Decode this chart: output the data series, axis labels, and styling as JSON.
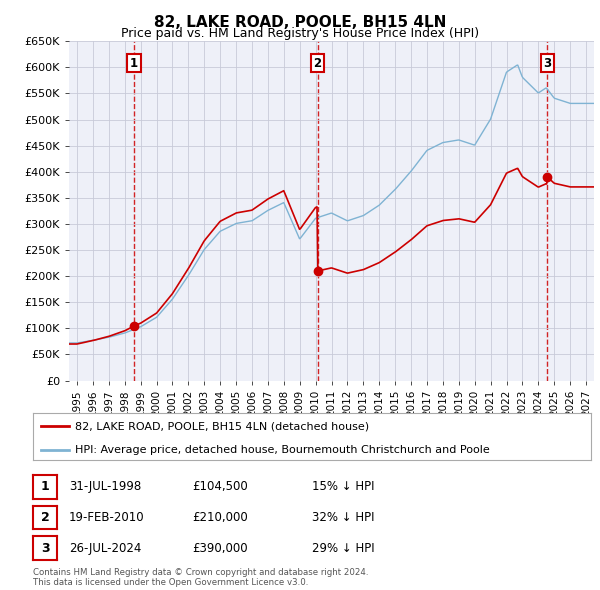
{
  "title": "82, LAKE ROAD, POOLE, BH15 4LN",
  "subtitle": "Price paid vs. HM Land Registry's House Price Index (HPI)",
  "ylim": [
    0,
    650000
  ],
  "yticks": [
    0,
    50000,
    100000,
    150000,
    200000,
    250000,
    300000,
    350000,
    400000,
    450000,
    500000,
    550000,
    600000,
    650000
  ],
  "ytick_labels": [
    "£0",
    "£50K",
    "£100K",
    "£150K",
    "£200K",
    "£250K",
    "£300K",
    "£350K",
    "£400K",
    "£450K",
    "£500K",
    "£550K",
    "£600K",
    "£650K"
  ],
  "xlim_start": 1994.5,
  "xlim_end": 2027.5,
  "xtick_years": [
    1995,
    1996,
    1997,
    1998,
    1999,
    2000,
    2001,
    2002,
    2003,
    2004,
    2005,
    2006,
    2007,
    2008,
    2009,
    2010,
    2011,
    2012,
    2013,
    2014,
    2015,
    2016,
    2017,
    2018,
    2019,
    2020,
    2021,
    2022,
    2023,
    2024,
    2025,
    2026,
    2027
  ],
  "sale_color": "#cc0000",
  "hpi_color": "#7fb3d3",
  "sale_label": "82, LAKE ROAD, POOLE, BH15 4LN (detached house)",
  "hpi_label": "HPI: Average price, detached house, Bournemouth Christchurch and Poole",
  "transactions": [
    {
      "num": 1,
      "date": "31-JUL-1998",
      "date_x": 1998.58,
      "price": 104500,
      "pct": "15%",
      "dir": "↓"
    },
    {
      "num": 2,
      "date": "19-FEB-2010",
      "date_x": 2010.13,
      "price": 210000,
      "pct": "32%",
      "dir": "↓"
    },
    {
      "num": 3,
      "date": "26-JUL-2024",
      "date_x": 2024.57,
      "price": 390000,
      "pct": "29%",
      "dir": "↓"
    }
  ],
  "footer_line1": "Contains HM Land Registry data © Crown copyright and database right 2024.",
  "footer_line2": "This data is licensed under the Open Government Licence v3.0.",
  "plot_bg_color": "#eef0f8",
  "grid_color": "#c8cad8"
}
